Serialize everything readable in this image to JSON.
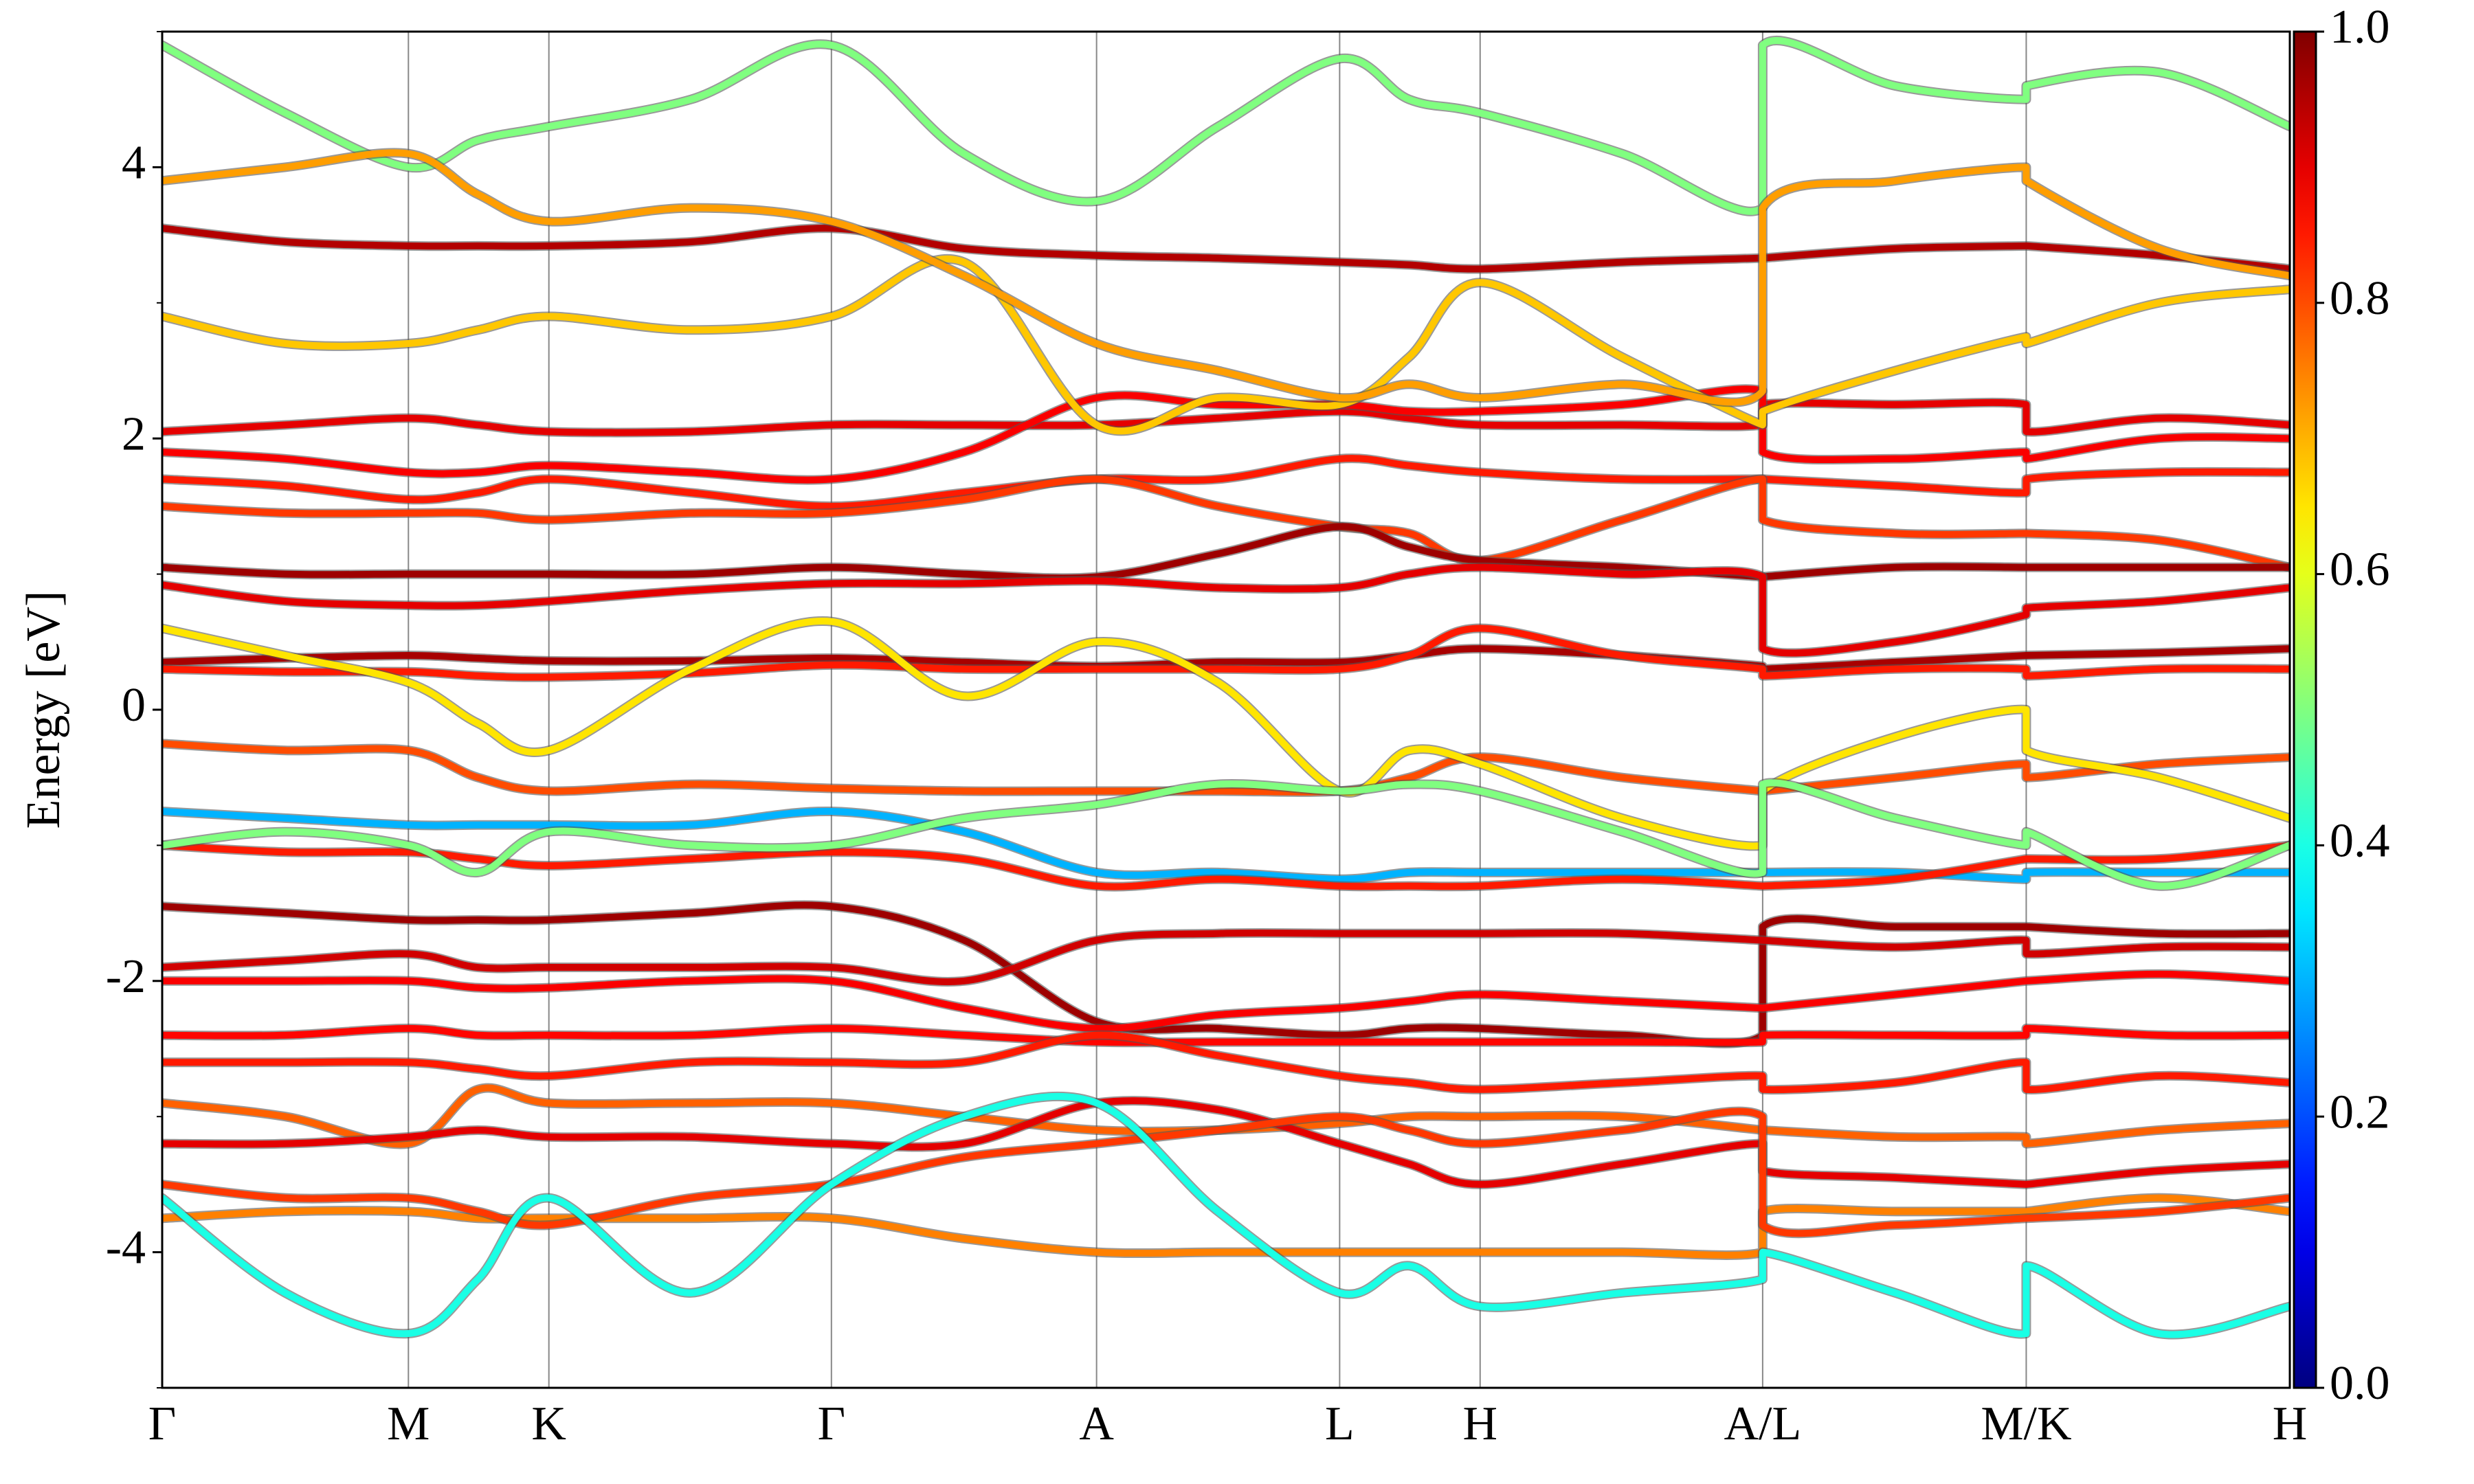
{
  "chart_data": {
    "type": "line",
    "y_label": "Energy [eV]",
    "x": [
      0,
      0.78,
      1.56,
      2.0,
      2.45,
      3.35,
      4.24,
      5.08,
      5.92,
      6.69,
      7.46,
      7.9,
      8.35,
      9.25,
      10.14,
      10.14,
      10.98,
      11.81,
      11.81,
      12.65,
      13.48
    ],
    "xlim": [
      0,
      13.48
    ],
    "xticks": [
      {
        "value": 0,
        "label": "Γ"
      },
      {
        "value": 1.56,
        "label": "M"
      },
      {
        "value": 2.45,
        "label": "K"
      },
      {
        "value": 4.24,
        "label": "Γ"
      },
      {
        "value": 5.92,
        "label": "A"
      },
      {
        "value": 7.46,
        "label": "L"
      },
      {
        "value": 8.35,
        "label": "H"
      },
      {
        "value": 10.14,
        "label": "A/L"
      },
      {
        "value": 11.81,
        "label": "M/K"
      },
      {
        "value": 13.48,
        "label": "H"
      }
    ],
    "ylim": [
      -5,
      5
    ],
    "yticks": [
      -4,
      -2,
      0,
      2,
      4
    ],
    "yminor_ticks": [
      -5,
      -3,
      -1,
      1,
      3,
      5
    ],
    "colormap": "jet",
    "clim": [
      0,
      1
    ],
    "cticks": [
      {
        "value": 0,
        "label": "0.0"
      },
      {
        "value": 0.2,
        "label": "0.2"
      },
      {
        "value": 0.4,
        "label": "0.4"
      },
      {
        "value": 0.6,
        "label": "0.6"
      },
      {
        "value": 0.8,
        "label": "0.8"
      },
      {
        "value": 1,
        "label": "1.0"
      }
    ],
    "series": [
      {
        "weight": 0.95,
        "values": [
          3.55,
          3.45,
          3.42,
          3.42,
          3.42,
          3.45,
          3.55,
          3.4,
          3.35,
          3.33,
          3.3,
          3.28,
          3.25,
          3.3,
          3.33,
          3.33,
          3.4,
          3.42,
          3.42,
          3.35,
          3.25
        ]
      },
      {
        "weight": 0.9,
        "values": [
          2.05,
          2.1,
          2.15,
          2.1,
          2.05,
          2.05,
          2.1,
          2.1,
          2.1,
          2.15,
          2.2,
          2.15,
          2.1,
          2.1,
          2.1,
          2.25,
          2.25,
          2.25,
          2.05,
          2.15,
          2.1
        ]
      },
      {
        "weight": 0.88,
        "values": [
          1.9,
          1.85,
          1.75,
          1.75,
          1.8,
          1.75,
          1.7,
          1.9,
          2.3,
          2.25,
          2.25,
          2.2,
          2.2,
          2.25,
          2.35,
          1.9,
          1.85,
          1.9,
          1.85,
          2.0,
          2.0
        ]
      },
      {
        "weight": 0.85,
        "values": [
          1.7,
          1.65,
          1.55,
          1.6,
          1.7,
          1.6,
          1.5,
          1.6,
          1.7,
          1.7,
          1.85,
          1.8,
          1.75,
          1.7,
          1.7,
          1.7,
          1.65,
          1.6,
          1.7,
          1.75,
          1.75
        ]
      },
      {
        "weight": 0.82,
        "values": [
          1.5,
          1.45,
          1.45,
          1.45,
          1.4,
          1.45,
          1.45,
          1.55,
          1.7,
          1.5,
          1.35,
          1.3,
          1.1,
          1.4,
          1.7,
          1.4,
          1.3,
          1.3,
          1.3,
          1.25,
          1.05
        ]
      },
      {
        "weight": 0.97,
        "values": [
          1.05,
          1.0,
          1.0,
          1.0,
          1.0,
          1.0,
          1.05,
          1.0,
          0.98,
          1.15,
          1.35,
          1.2,
          1.1,
          1.05,
          0.98,
          0.98,
          1.05,
          1.05,
          1.05,
          1.05,
          1.05
        ]
      },
      {
        "weight": 0.9,
        "values": [
          0.92,
          0.8,
          0.77,
          0.77,
          0.8,
          0.88,
          0.93,
          0.93,
          0.95,
          0.9,
          0.9,
          1.0,
          1.05,
          1.0,
          0.98,
          0.45,
          0.5,
          0.7,
          0.75,
          0.8,
          0.9
        ]
      },
      {
        "weight": 0.96,
        "values": [
          0.35,
          0.38,
          0.4,
          0.38,
          0.36,
          0.36,
          0.38,
          0.35,
          0.32,
          0.35,
          0.35,
          0.4,
          0.45,
          0.4,
          0.32,
          0.3,
          0.35,
          0.4,
          0.4,
          0.42,
          0.45
        ]
      },
      {
        "weight": 0.85,
        "values": [
          0.3,
          0.28,
          0.28,
          0.25,
          0.24,
          0.27,
          0.33,
          0.3,
          0.3,
          0.3,
          0.3,
          0.4,
          0.6,
          0.4,
          0.3,
          0.25,
          0.3,
          0.3,
          0.25,
          0.3,
          0.3
        ]
      },
      {
        "weight": 0.8,
        "values": [
          -0.25,
          -0.3,
          -0.3,
          -0.5,
          -0.6,
          -0.55,
          -0.58,
          -0.6,
          -0.6,
          -0.6,
          -0.6,
          -0.5,
          -0.35,
          -0.5,
          -0.6,
          -0.6,
          -0.5,
          -0.4,
          -0.5,
          -0.4,
          -0.35
        ]
      },
      {
        "weight": 0.3,
        "values": [
          -0.75,
          -0.8,
          -0.85,
          -0.85,
          -0.85,
          -0.85,
          -0.75,
          -0.9,
          -1.2,
          -1.2,
          -1.25,
          -1.2,
          -1.2,
          -1.2,
          -1.2,
          -1.2,
          -1.2,
          -1.25,
          -1.2,
          -1.2,
          -1.2
        ]
      },
      {
        "weight": 0.85,
        "values": [
          -1.0,
          -1.05,
          -1.05,
          -1.1,
          -1.15,
          -1.1,
          -1.05,
          -1.1,
          -1.3,
          -1.25,
          -1.3,
          -1.3,
          -1.3,
          -1.25,
          -1.3,
          -1.3,
          -1.25,
          -1.1,
          -1.1,
          -1.1,
          -1.0
        ]
      },
      {
        "weight": 0.97,
        "values": [
          -1.45,
          -1.5,
          -1.55,
          -1.55,
          -1.55,
          -1.5,
          -1.45,
          -1.7,
          -2.3,
          -2.35,
          -2.4,
          -2.35,
          -2.35,
          -2.4,
          -2.4,
          -1.6,
          -1.6,
          -1.6,
          -1.6,
          -1.65,
          -1.65
        ]
      },
      {
        "weight": 0.92,
        "values": [
          -1.9,
          -1.85,
          -1.8,
          -1.9,
          -1.9,
          -1.9,
          -1.9,
          -2.0,
          -1.7,
          -1.65,
          -1.65,
          -1.65,
          -1.65,
          -1.65,
          -1.7,
          -1.7,
          -1.75,
          -1.7,
          -1.8,
          -1.75,
          -1.75
        ]
      },
      {
        "weight": 0.88,
        "values": [
          -2.0,
          -2.0,
          -2.0,
          -2.05,
          -2.05,
          -2.0,
          -2.0,
          -2.2,
          -2.35,
          -2.25,
          -2.2,
          -2.15,
          -2.1,
          -2.15,
          -2.2,
          -2.2,
          -2.1,
          -2.0,
          -2.0,
          -1.95,
          -2.0
        ]
      },
      {
        "weight": 0.87,
        "values": [
          -2.4,
          -2.4,
          -2.35,
          -2.4,
          -2.4,
          -2.4,
          -2.35,
          -2.4,
          -2.45,
          -2.45,
          -2.45,
          -2.45,
          -2.45,
          -2.45,
          -2.45,
          -2.4,
          -2.4,
          -2.4,
          -2.35,
          -2.4,
          -2.4
        ]
      },
      {
        "weight": 0.85,
        "values": [
          -2.6,
          -2.6,
          -2.6,
          -2.65,
          -2.7,
          -2.6,
          -2.6,
          -2.6,
          -2.4,
          -2.55,
          -2.7,
          -2.75,
          -2.8,
          -2.75,
          -2.7,
          -2.8,
          -2.75,
          -2.6,
          -2.8,
          -2.7,
          -2.75
        ]
      },
      {
        "weight": 0.78,
        "values": [
          -2.9,
          -3.0,
          -3.2,
          -2.8,
          -2.9,
          -2.9,
          -2.9,
          -3.0,
          -3.1,
          -3.1,
          -3.05,
          -3.0,
          -3.0,
          -3.0,
          -3.1,
          -3.1,
          -3.15,
          -3.15,
          -3.2,
          -3.1,
          -3.05
        ]
      },
      {
        "weight": 0.9,
        "values": [
          -3.2,
          -3.2,
          -3.15,
          -3.1,
          -3.15,
          -3.15,
          -3.2,
          -3.2,
          -2.9,
          -2.95,
          -3.2,
          -3.35,
          -3.5,
          -3.35,
          -3.2,
          -3.4,
          -3.45,
          -3.5,
          -3.5,
          -3.4,
          -3.35
        ]
      },
      {
        "weight": 0.75,
        "values": [
          -3.75,
          -3.7,
          -3.7,
          -3.75,
          -3.75,
          -3.75,
          -3.75,
          -3.9,
          -4.0,
          -4.0,
          -4.0,
          -4.0,
          -4.0,
          -4.0,
          -4.0,
          -3.7,
          -3.7,
          -3.7,
          -3.7,
          -3.6,
          -3.7
        ]
      },
      {
        "weight": 0.82,
        "values": [
          -3.5,
          -3.6,
          -3.6,
          -3.7,
          -3.8,
          -3.6,
          -3.5,
          -3.3,
          -3.2,
          -3.1,
          -3.0,
          -3.1,
          -3.2,
          -3.1,
          -3.0,
          -3.8,
          -3.8,
          -3.75,
          -3.75,
          -3.7,
          -3.6
        ]
      },
      {
        "weight": 0.4,
        "values": [
          -3.6,
          -4.3,
          -4.6,
          -4.2,
          -3.6,
          -4.3,
          -3.5,
          -3.0,
          -2.9,
          -3.7,
          -4.3,
          -4.1,
          -4.4,
          -4.3,
          -4.2,
          -4.0,
          -4.3,
          -4.6,
          -4.1,
          -4.6,
          -4.4
        ]
      },
      {
        "weight": 0.5,
        "values": [
          4.9,
          4.4,
          4.0,
          4.2,
          4.3,
          4.5,
          4.9,
          4.1,
          3.75,
          4.3,
          4.8,
          4.5,
          4.4,
          4.1,
          3.7,
          4.9,
          4.6,
          4.5,
          4.6,
          4.7,
          4.3
        ]
      },
      {
        "weight": 0.68,
        "values": [
          2.9,
          2.7,
          2.7,
          2.8,
          2.9,
          2.8,
          2.9,
          3.3,
          2.1,
          2.3,
          2.25,
          2.6,
          3.15,
          2.6,
          2.1,
          2.2,
          2.5,
          2.75,
          2.7,
          3.0,
          3.1
        ]
      },
      {
        "weight": 0.65,
        "values": [
          0.6,
          0.4,
          0.2,
          -0.1,
          -0.3,
          0.3,
          0.65,
          0.1,
          0.5,
          0.2,
          -0.6,
          -0.3,
          -0.4,
          -0.8,
          -1.0,
          -0.6,
          -0.2,
          0.0,
          -0.3,
          -0.5,
          -0.8
        ]
      },
      {
        "weight": 0.5,
        "values": [
          -1.0,
          -0.9,
          -1.0,
          -1.2,
          -0.9,
          -1.0,
          -1.0,
          -0.8,
          -0.7,
          -0.55,
          -0.6,
          -0.55,
          -0.6,
          -0.9,
          -1.2,
          -0.55,
          -0.8,
          -1.0,
          -0.9,
          -1.3,
          -1.0
        ]
      },
      {
        "weight": 0.72,
        "values": [
          3.9,
          4.0,
          4.1,
          3.8,
          3.6,
          3.7,
          3.6,
          3.2,
          2.7,
          2.5,
          2.3,
          2.4,
          2.3,
          2.4,
          2.35,
          3.7,
          3.9,
          4.0,
          3.9,
          3.4,
          3.2
        ]
      }
    ]
  }
}
